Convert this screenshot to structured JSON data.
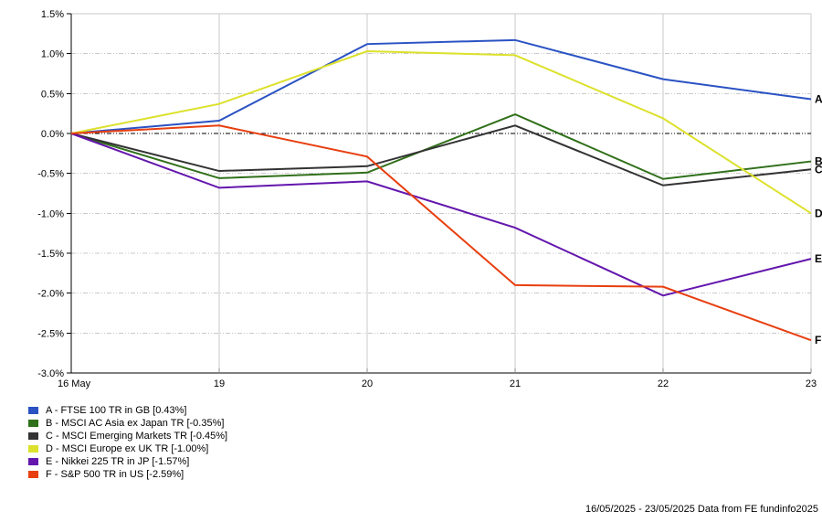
{
  "chart_data": {
    "type": "line",
    "title": "",
    "x_labels": [
      "16 May",
      "19",
      "20",
      "21",
      "22",
      "23"
    ],
    "y_ticks": [
      {
        "value": 1.5,
        "label": "1.5%"
      },
      {
        "value": 1.0,
        "label": "1.0%"
      },
      {
        "value": 0.5,
        "label": "0.5%"
      },
      {
        "value": 0.0,
        "label": "0.0%"
      },
      {
        "value": -0.5,
        "label": "-0.5%"
      },
      {
        "value": -1.0,
        "label": "-1.0%"
      },
      {
        "value": -1.5,
        "label": "-1.5%"
      },
      {
        "value": -2.0,
        "label": "-2.0%"
      },
      {
        "value": -2.5,
        "label": "-2.5%"
      },
      {
        "value": -3.0,
        "label": "-3.0%"
      }
    ],
    "ylim": [
      -3.0,
      1.5
    ],
    "unit": "%",
    "grid": true,
    "legend_position": "bottom-left",
    "series": [
      {
        "id": "A",
        "name": "FTSE 100 TR in GB",
        "result": "0.43%",
        "legend_label": "A - FTSE 100 TR in GB [0.43%]",
        "color": "#2a52c3",
        "values": [
          0.0,
          0.16,
          1.12,
          1.17,
          0.68,
          0.43
        ]
      },
      {
        "id": "B",
        "name": "MSCI AC Asia ex Japan TR",
        "result": "-0.35%",
        "legend_label": "B - MSCI AC Asia ex Japan TR [-0.35%]",
        "color": "#30701a",
        "values": [
          0.0,
          -0.56,
          -0.49,
          0.24,
          -0.57,
          -0.35
        ]
      },
      {
        "id": "C",
        "name": "MSCI Emerging Markets TR",
        "result": "-0.45%",
        "legend_label": "C - MSCI Emerging Markets TR [-0.45%]",
        "color": "#333333",
        "values": [
          0.0,
          -0.47,
          -0.41,
          0.1,
          -0.65,
          -0.45
        ]
      },
      {
        "id": "D",
        "name": "MSCI Europe ex UK TR",
        "result": "-1.00%",
        "legend_label": "D - MSCI Europe ex UK TR [-1.00%]",
        "color": "#dce12b",
        "values": [
          0.0,
          0.37,
          1.03,
          0.98,
          0.19,
          -1.0
        ]
      },
      {
        "id": "E",
        "name": "Nikkei 225 TR in JP",
        "result": "-1.57%",
        "legend_label": "E - Nikkei 225 TR in JP [-1.57%]",
        "color": "#6316ad",
        "values": [
          0.0,
          -0.68,
          -0.6,
          -1.18,
          -2.03,
          -1.57
        ]
      },
      {
        "id": "F",
        "name": "S&P 500 TR in US",
        "result": "-2.59%",
        "legend_label": "F - S&P 500 TR in US [-2.59%]",
        "color": "#e83f10",
        "values": [
          0.0,
          0.1,
          -0.29,
          -1.9,
          -1.92,
          -2.59
        ]
      }
    ]
  },
  "footer": {
    "attribution": "16/05/2025 - 23/05/2025 Data from FE fundinfo2025"
  },
  "colors": {
    "grid": "#c9c9c9",
    "axis": "#000000",
    "zero_line": "#000000",
    "background": "#ffffff"
  }
}
